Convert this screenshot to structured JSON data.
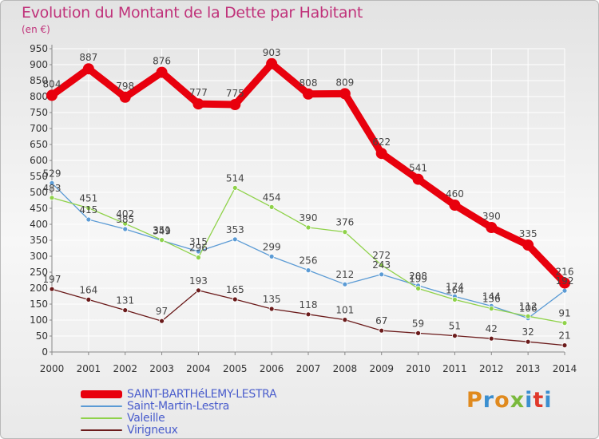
{
  "header": {
    "title": "Evolution du Montant de la Dette par Habitant",
    "subtitle": "(en €)"
  },
  "logo": {
    "text": "Proxiti",
    "colors": [
      "#e08a1e",
      "#3b8fd0",
      "#e08a1e",
      "#7ab93c",
      "#3b8fd0",
      "#e0392b",
      "#3b8fd0"
    ]
  },
  "colors": {
    "grid": "#ffffff",
    "axis": "#888888",
    "tick_text": "#333333",
    "label_text": "#444444"
  },
  "chart_data": {
    "type": "line",
    "title": "Evolution du Montant de la Dette par Habitant",
    "subtitle": "(en €)",
    "x": [
      2000,
      2001,
      2002,
      2003,
      2004,
      2005,
      2006,
      2007,
      2008,
      2009,
      2010,
      2011,
      2012,
      2013,
      2014
    ],
    "ylim": [
      0,
      950
    ],
    "ytick_step": 50,
    "grid": true,
    "legend": "bottom-left",
    "series": [
      {
        "name": "SAINT-BARTHéLEMY-LESTRA",
        "color": "#e8000d",
        "values": [
          804,
          887,
          798,
          876,
          777,
          775,
          903,
          808,
          809,
          622,
          541,
          460,
          390,
          335,
          216
        ]
      },
      {
        "name": "Saint-Martin-Lestra",
        "color": "#5b9bd5",
        "values": [
          529,
          415,
          385,
          349,
          315,
          353,
          299,
          256,
          212,
          243,
          208,
          174,
          144,
          106,
          192
        ]
      },
      {
        "name": "Valeille",
        "color": "#8fd24a",
        "values": [
          483,
          451,
          402,
          351,
          296,
          514,
          454,
          390,
          376,
          272,
          199,
          164,
          136,
          112,
          91
        ]
      },
      {
        "name": "Virigneux",
        "color": "#6b1b1b",
        "values": [
          197,
          164,
          131,
          97,
          193,
          165,
          135,
          118,
          101,
          67,
          59,
          51,
          42,
          32,
          21
        ]
      }
    ]
  }
}
